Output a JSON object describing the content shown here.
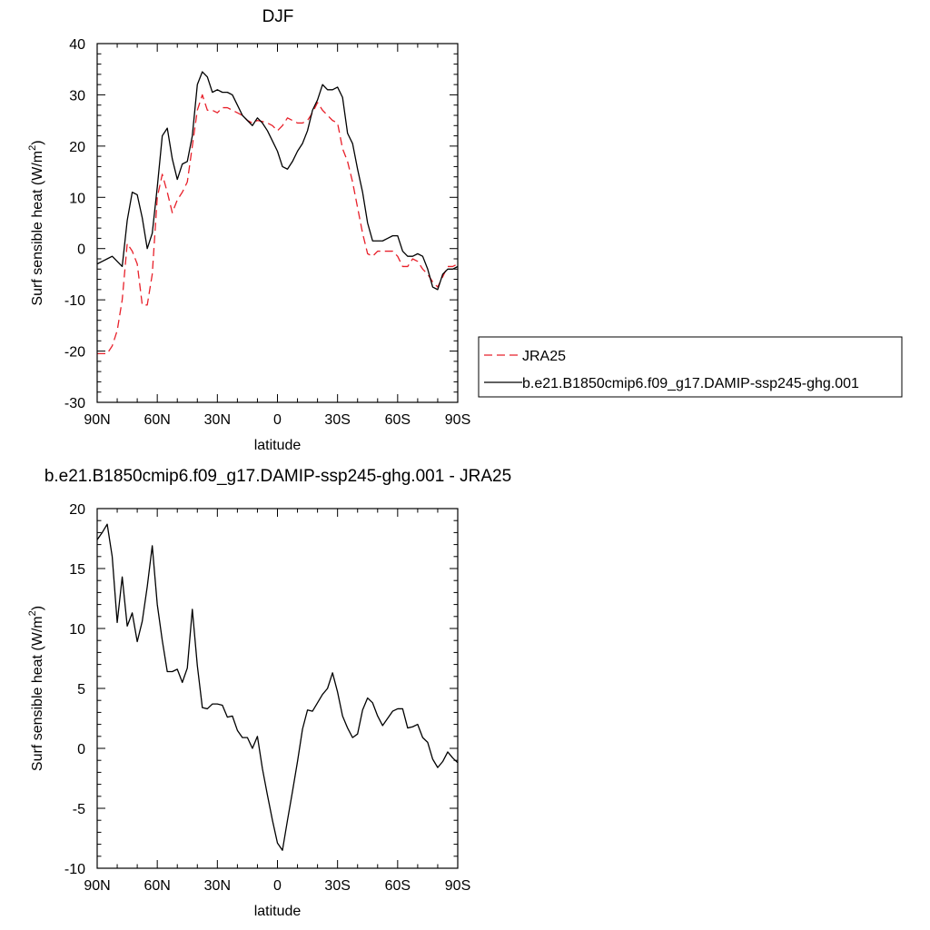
{
  "chart_data": [
    {
      "type": "line",
      "title": "DJF",
      "xlabel": "latitude",
      "ylabel": "Surf sensible heat (W/m²)",
      "ylabel_parts": {
        "main": "Surf sensible heat (W/m",
        "sup": "2",
        "end": ")"
      },
      "xlim": [
        90,
        -90
      ],
      "ylim": [
        -30,
        40
      ],
      "xticks": [
        {
          "value": 90,
          "label": "90N"
        },
        {
          "value": 60,
          "label": "60N"
        },
        {
          "value": 30,
          "label": "30N"
        },
        {
          "value": 0,
          "label": "0"
        },
        {
          "value": -30,
          "label": "30S"
        },
        {
          "value": -60,
          "label": "60S"
        },
        {
          "value": -90,
          "label": "90S"
        }
      ],
      "yticks": [
        -30,
        -20,
        -10,
        0,
        10,
        20,
        30,
        40
      ],
      "yticklabels": [
        "-30",
        "-20",
        "-10",
        "0",
        "10",
        "20",
        "30",
        "40"
      ],
      "legend_position": "right",
      "legend": [
        {
          "name": "JRA25",
          "color": "#e8202a",
          "dash": true
        },
        {
          "name": "b.e21.B1850cmip6.f09_g17.DAMIP-ssp245-ghg.001",
          "color": "#000000",
          "dash": false
        }
      ],
      "series": [
        {
          "name": "JRA25",
          "color": "#e8202a",
          "dash": true,
          "x": [
            90,
            87.5,
            85,
            82.5,
            80,
            77.5,
            75,
            72.5,
            70,
            67.5,
            65,
            62.5,
            60,
            57.5,
            55,
            52.5,
            50,
            47.5,
            45,
            42.5,
            40,
            37.5,
            35,
            32.5,
            30,
            27.5,
            25,
            22.5,
            20,
            17.5,
            15,
            12.5,
            10,
            7.5,
            5,
            2.5,
            0,
            -2.5,
            -5,
            -7.5,
            -10,
            -12.5,
            -15,
            -17.5,
            -20,
            -22.5,
            -25,
            -27.5,
            -30,
            -32.5,
            -35,
            -37.5,
            -40,
            -42.5,
            -45,
            -47.5,
            -50,
            -52.5,
            -55,
            -57.5,
            -60,
            -62.5,
            -65,
            -67.5,
            -70,
            -72.5,
            -75,
            -77.5,
            -80,
            -82.5,
            -85,
            -87.5,
            -90
          ],
          "y": [
            -20.5,
            -20.5,
            -20.5,
            -19,
            -16,
            -10,
            1,
            -0.5,
            -3,
            -11,
            -11,
            -5,
            10,
            14.5,
            11,
            7,
            9.5,
            11,
            13,
            20,
            27,
            30,
            27,
            27,
            26.5,
            27.5,
            27.5,
            27,
            26.5,
            26,
            25,
            24.5,
            25,
            24.8,
            24.5,
            24,
            23,
            24,
            25.5,
            25,
            24.5,
            24.5,
            25,
            26.5,
            28.5,
            27,
            26,
            25,
            24.5,
            19.5,
            17,
            13,
            8,
            3,
            -1,
            -1.5,
            -0.5,
            -0.5,
            -0.5,
            -0.5,
            -1.5,
            -3.5,
            -3.5,
            -2,
            -2.5,
            -4,
            -5,
            -6.5,
            -7.5,
            -5.5,
            -3.5,
            -3.5,
            -3
          ]
        },
        {
          "name": "b.e21.B1850cmip6.f09_g17.DAMIP-ssp245-ghg.001",
          "color": "#000000",
          "dash": false,
          "x": [
            90,
            87.5,
            85,
            82.5,
            80,
            77.5,
            75,
            72.5,
            70,
            67.5,
            65,
            62.5,
            60,
            57.5,
            55,
            52.5,
            50,
            47.5,
            45,
            42.5,
            40,
            37.5,
            35,
            32.5,
            30,
            27.5,
            25,
            22.5,
            20,
            17.5,
            15,
            12.5,
            10,
            7.5,
            5,
            2.5,
            0,
            -2.5,
            -5,
            -7.5,
            -10,
            -12.5,
            -15,
            -17.5,
            -20,
            -22.5,
            -25,
            -27.5,
            -30,
            -32.5,
            -35,
            -37.5,
            -40,
            -42.5,
            -45,
            -47.5,
            -50,
            -52.5,
            -55,
            -57.5,
            -60,
            -62.5,
            -65,
            -67.5,
            -70,
            -72.5,
            -75,
            -77.5,
            -80,
            -82.5,
            -85,
            -87.5,
            -90
          ],
          "y": [
            -3,
            -2.5,
            -2,
            -1.5,
            -2.5,
            -3.5,
            5.5,
            11,
            10.5,
            6,
            0,
            3,
            12,
            22,
            23.5,
            17.5,
            13.5,
            16.5,
            17,
            22,
            32,
            34.5,
            33.5,
            30.5,
            31,
            30.5,
            30.5,
            30,
            28,
            26,
            25,
            24,
            25.5,
            24.5,
            23,
            21,
            19,
            16,
            15.5,
            17,
            19,
            20.5,
            23,
            27,
            29,
            32,
            31,
            31,
            31.5,
            29.5,
            22.5,
            20.5,
            15.5,
            11,
            5,
            1.5,
            1.5,
            1.5,
            2,
            2.5,
            2.5,
            -0.5,
            -1.5,
            -1.5,
            -1,
            -1.5,
            -4,
            -7.5,
            -8,
            -5,
            -4,
            -4,
            -3.5
          ]
        }
      ]
    },
    {
      "type": "line",
      "title": "b.e21.B1850cmip6.f09_g17.DAMIP-ssp245-ghg.001 - JRA25",
      "xlabel": "latitude",
      "ylabel": "Surf sensible heat (W/m²)",
      "ylabel_parts": {
        "main": "Surf sensible heat (W/m",
        "sup": "2",
        "end": ")"
      },
      "xlim": [
        90,
        -90
      ],
      "ylim": [
        -10,
        20
      ],
      "xticks": [
        {
          "value": 90,
          "label": "90N"
        },
        {
          "value": 60,
          "label": "60N"
        },
        {
          "value": 30,
          "label": "30N"
        },
        {
          "value": 0,
          "label": "0"
        },
        {
          "value": -30,
          "label": "30S"
        },
        {
          "value": -60,
          "label": "60S"
        },
        {
          "value": -90,
          "label": "90S"
        }
      ],
      "yticks": [
        -10,
        -5,
        0,
        5,
        10,
        15,
        20
      ],
      "yticklabels": [
        "-10",
        "-5",
        "0",
        "5",
        "10",
        "15",
        "20"
      ],
      "series": [
        {
          "color": "#000000",
          "dash": false,
          "x": [
            90,
            87.5,
            85,
            82.5,
            80,
            77.5,
            75,
            72.5,
            70,
            67.5,
            65,
            62.5,
            60,
            57.5,
            55,
            52.5,
            50,
            47.5,
            45,
            42.5,
            40,
            37.5,
            35,
            32.5,
            30,
            27.5,
            25,
            22.5,
            20,
            17.5,
            15,
            12.5,
            10,
            7.5,
            5,
            2.5,
            0,
            -2.5,
            -5,
            -7.5,
            -10,
            -12.5,
            -15,
            -17.5,
            -20,
            -22.5,
            -25,
            -27.5,
            -30,
            -32.5,
            -35,
            -37.5,
            -40,
            -42.5,
            -45,
            -47.5,
            -50,
            -52.5,
            -55,
            -57.5,
            -60,
            -62.5,
            -65,
            -67.5,
            -70,
            -72.5,
            -75,
            -77.5,
            -80,
            -82.5,
            -85,
            -87.5,
            -90
          ],
          "y": [
            17.4,
            18,
            18.7,
            16,
            10.5,
            14.3,
            10.2,
            11.3,
            8.9,
            10.6,
            13.5,
            16.9,
            12,
            9,
            6.4,
            6.4,
            6.6,
            5.5,
            6.7,
            11.6,
            6.9,
            3.4,
            3.3,
            3.7,
            3.7,
            3.6,
            2.6,
            2.7,
            1.5,
            0.9,
            0.9,
            0,
            1,
            -1.7,
            -3.9,
            -6,
            -7.9,
            -8.5,
            -6,
            -3.6,
            -1.1,
            1.6,
            3.2,
            3.1,
            3.8,
            4.5,
            5,
            6.3,
            4.7,
            2.7,
            1.7,
            0.9,
            1.2,
            3.2,
            4.2,
            3.8,
            2.7,
            1.9,
            2.5,
            3.1,
            3.3,
            3.3,
            1.7,
            1.8,
            2,
            0.9,
            0.5,
            -0.9,
            -1.6,
            -1.1,
            -0.3,
            -0.8,
            -1.2
          ]
        }
      ]
    }
  ]
}
